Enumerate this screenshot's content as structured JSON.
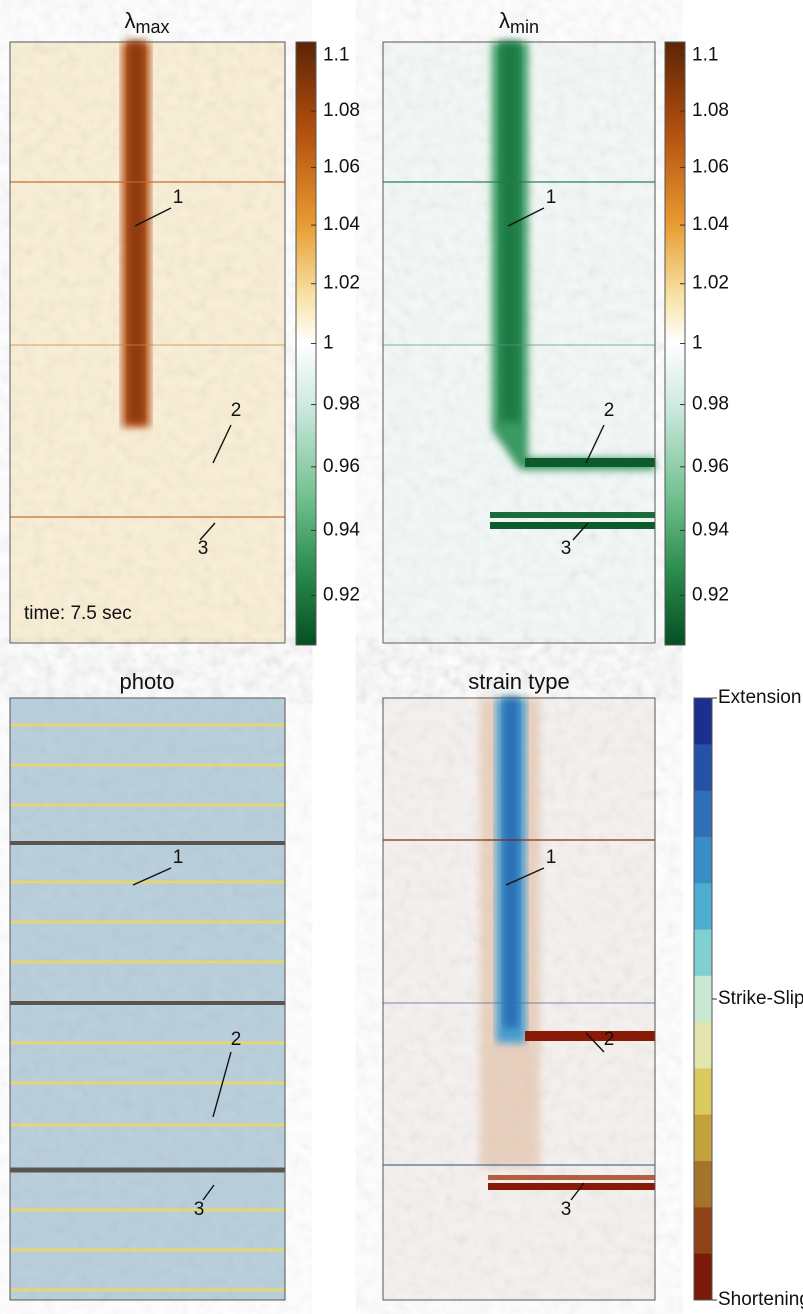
{
  "panels": [
    {
      "title": "λ",
      "title_sub": "max",
      "annotations": [
        "1",
        "2",
        "3"
      ],
      "note": "time: 7.5 sec",
      "colorbar": {
        "log_scale": true,
        "lim": [
          0.905,
          1.105
        ],
        "ticks": [
          1.1,
          1.08,
          1.06,
          1.04,
          1.02,
          1,
          0.98,
          0.96,
          0.94,
          0.92
        ]
      }
    },
    {
      "title": "λ",
      "title_sub": "min",
      "annotations": [
        "1",
        "2",
        "3"
      ],
      "colorbar": {
        "log_scale": true,
        "lim": [
          0.905,
          1.105
        ],
        "ticks": [
          1.1,
          1.08,
          1.06,
          1.04,
          1.02,
          1,
          0.98,
          0.96,
          0.94,
          0.92
        ]
      }
    },
    {
      "title": "photo",
      "annotations": [
        "1",
        "2",
        "3"
      ]
    },
    {
      "title": "strain type",
      "annotations": [
        "1",
        "2",
        "3"
      ],
      "colorbar": {
        "ticks": [
          "Extension",
          "Strike-Slip",
          "Shortening"
        ],
        "colors": [
          "#1b2f8f",
          "#2551a7",
          "#2f6fb5",
          "#3a8cc4",
          "#4cadd0",
          "#80d0d2",
          "#c8e8d2",
          "#e2e6ae",
          "#dac95e",
          "#c4a23b",
          "#a5732a",
          "#8d4316",
          "#7a1a08"
        ]
      }
    }
  ]
}
